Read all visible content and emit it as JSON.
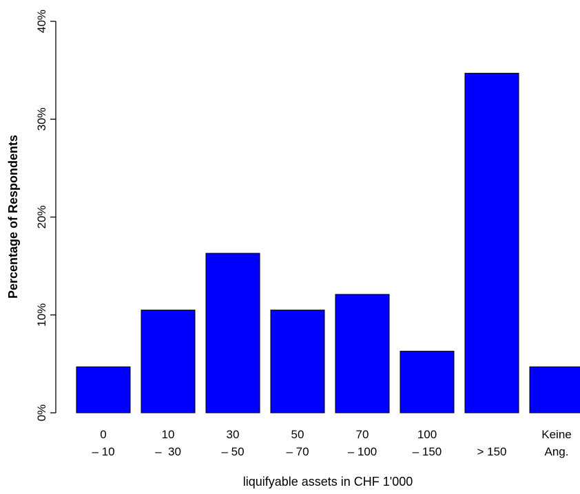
{
  "chart_data": {
    "type": "bar",
    "categories": [
      [
        "0",
        "– 10"
      ],
      [
        "10",
        "–  30"
      ],
      [
        "30",
        "– 50"
      ],
      [
        "50",
        "– 70"
      ],
      [
        "70",
        "– 100"
      ],
      [
        "100",
        "– 150"
      ],
      [
        "",
        "> 150"
      ],
      [
        "Keine",
        "Ang."
      ]
    ],
    "values": [
      4.7,
      10.5,
      16.3,
      10.5,
      12.1,
      6.3,
      34.7,
      4.7
    ],
    "title": "",
    "xlabel": "liquifyable assets in CHF 1'000",
    "ylabel": "Percentage of Respondents",
    "ylim": [
      0,
      40
    ],
    "yticks": [
      "0%",
      "10%",
      "20%",
      "30%",
      "40%"
    ],
    "bar_color": "#0000ff",
    "grid": false,
    "legend": "none"
  }
}
